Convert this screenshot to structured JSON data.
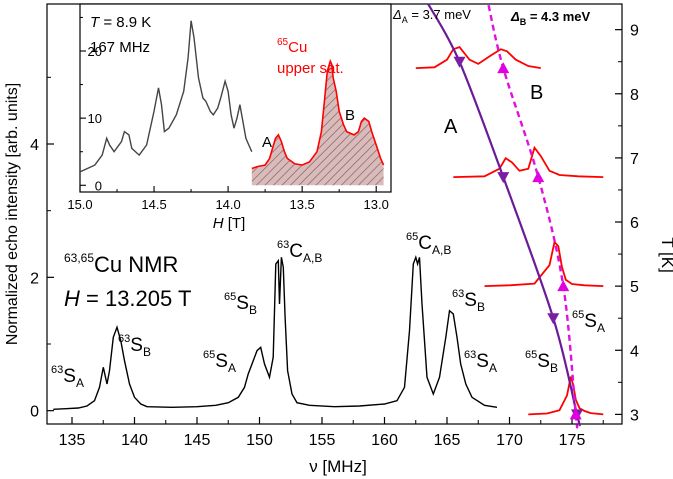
{
  "colors": {
    "main": "#000000",
    "spectrum": "#ff0000",
    "hatch": "#c8a0a0",
    "fit_A": "#6a1b9a",
    "fit_B": "#e010e0",
    "marker_A": "#7b1fa2",
    "marker_B": "#e000e0"
  },
  "chart_data": [
    {
      "id": "main",
      "type": "line",
      "xlabel": "ν [MHz]",
      "ylabel": "Normalized echo intensity [arb. units]",
      "xlim": [
        133,
        179
      ],
      "ylim": [
        -0.2,
        6.1
      ],
      "xticks": [
        "135",
        "140",
        "145",
        "150",
        "155",
        "160",
        "165",
        "170",
        "175"
      ],
      "yticks": [
        "0",
        "2",
        "4"
      ],
      "grid": false,
      "series": [
        {
          "color": "#000000",
          "x": [
            133.5,
            134.5,
            135.5,
            136.2,
            136.8,
            137.2,
            137.5,
            137.8,
            138.0,
            138.3,
            138.6,
            138.9,
            139.2,
            139.6,
            140.0,
            140.5,
            141.0,
            143.0,
            145.0,
            146.5,
            147.5,
            148.3,
            148.8,
            149.1,
            149.4,
            149.8,
            150.1,
            150.4,
            150.8,
            151.1,
            151.3,
            151.5,
            151.6,
            151.75,
            151.9,
            152.05,
            152.25,
            152.6,
            153.0,
            154.0,
            156.0,
            158.0,
            160.0,
            161.0,
            161.6,
            162.0,
            162.3,
            162.5,
            162.65,
            162.8,
            163.0,
            163.4,
            163.9,
            164.4,
            164.9,
            165.2,
            165.5,
            165.8,
            166.1,
            166.5,
            167.0,
            168.0,
            169.0
          ],
          "y": [
            0.02,
            0.03,
            0.04,
            0.07,
            0.15,
            0.35,
            0.65,
            0.4,
            0.6,
            1.1,
            1.25,
            1.05,
            0.75,
            0.4,
            0.2,
            0.1,
            0.06,
            0.05,
            0.06,
            0.08,
            0.12,
            0.2,
            0.35,
            0.55,
            0.7,
            0.9,
            0.95,
            0.7,
            0.5,
            0.8,
            2.2,
            2.25,
            1.6,
            2.3,
            2.15,
            1.4,
            0.6,
            0.25,
            0.12,
            0.08,
            0.06,
            0.07,
            0.1,
            0.15,
            0.35,
            1.2,
            2.2,
            2.3,
            2.2,
            2.3,
            1.6,
            0.5,
            0.25,
            0.5,
            1.1,
            1.5,
            1.45,
            1.1,
            0.7,
            0.4,
            0.2,
            0.08,
            0.05
          ]
        }
      ],
      "annotations": [
        {
          "text": "63,65",
          "role": "sup"
        },
        {
          "text": "Cu NMR",
          "role": "main"
        },
        {
          "text": "H",
          "role": "italic"
        },
        {
          "text": " = 13.205 T",
          "role": "main"
        },
        {
          "text": "63",
          "role": "sup"
        },
        {
          "text": "S",
          "role": "main"
        },
        {
          "text": "A",
          "role": "sub"
        },
        {
          "text": "63",
          "role": "sup"
        },
        {
          "text": "S",
          "role": "main"
        },
        {
          "text": "B",
          "role": "sub"
        },
        {
          "text": "65",
          "role": "sup"
        },
        {
          "text": "S",
          "role": "main"
        },
        {
          "text": "B",
          "role": "sub"
        },
        {
          "text": "65",
          "role": "sup"
        },
        {
          "text": "S",
          "role": "main"
        },
        {
          "text": "A",
          "role": "sub"
        },
        {
          "text": "63",
          "role": "sup"
        },
        {
          "text": "C",
          "role": "main"
        },
        {
          "text": "A,B",
          "role": "sub"
        },
        {
          "text": "65",
          "role": "sup"
        },
        {
          "text": "C",
          "role": "main"
        },
        {
          "text": "A,B",
          "role": "sub"
        },
        {
          "text": "63",
          "role": "sup"
        },
        {
          "text": "S",
          "role": "main"
        },
        {
          "text": "B",
          "role": "sub"
        },
        {
          "text": "63",
          "role": "sup"
        },
        {
          "text": "S",
          "role": "main"
        },
        {
          "text": "A",
          "role": "sub"
        },
        {
          "text": "65",
          "role": "sup"
        },
        {
          "text": "S",
          "role": "main"
        },
        {
          "text": "B",
          "role": "sub"
        },
        {
          "text": "65",
          "role": "sup"
        },
        {
          "text": "S",
          "role": "main"
        },
        {
          "text": "A",
          "role": "sub"
        }
      ]
    },
    {
      "id": "temperature",
      "type": "line",
      "y2label": "T [K]",
      "y2lim": [
        2.85,
        9.4
      ],
      "y2ticks": [
        "3",
        "4",
        "5",
        "6",
        "7",
        "8",
        "9"
      ],
      "spectra": [
        {
          "T": 3.0,
          "x": [
            171.5,
            173.0,
            174.0,
            174.6,
            174.9,
            175.1,
            175.3,
            175.6,
            176.0,
            176.5,
            177.5
          ],
          "y": [
            0.0,
            0.02,
            0.1,
            0.45,
            0.9,
            0.7,
            0.35,
            0.15,
            0.08,
            0.03,
            0.0
          ]
        },
        {
          "T": 5.0,
          "x": [
            168.0,
            170.0,
            172.0,
            173.2,
            173.6,
            173.9,
            174.2,
            174.5,
            175.0,
            176.0,
            177.5
          ],
          "y": [
            0.0,
            0.02,
            0.06,
            0.5,
            1.05,
            0.95,
            0.45,
            0.15,
            0.05,
            0.02,
            0.0
          ]
        },
        {
          "T": 6.7,
          "x": [
            165.5,
            168.0,
            169.2,
            169.7,
            170.2,
            170.8,
            171.5,
            172.0,
            172.5,
            173.2,
            174.0,
            175.5,
            177.5
          ],
          "y": [
            0.0,
            0.02,
            0.2,
            0.45,
            0.35,
            0.15,
            0.2,
            0.7,
            0.5,
            0.15,
            0.05,
            0.02,
            0.0
          ]
        },
        {
          "T": 8.4,
          "x": [
            162.5,
            164.0,
            165.0,
            165.5,
            166.0,
            166.8,
            167.5,
            168.5,
            169.3,
            169.8,
            170.5,
            171.5,
            172.5
          ],
          "y": [
            0.0,
            0.02,
            0.2,
            0.45,
            0.5,
            0.2,
            0.1,
            0.3,
            0.45,
            0.4,
            0.2,
            0.05,
            0.0
          ]
        }
      ],
      "fit_A": {
        "delta_label": "Δ",
        "delta_sub": "A",
        "delta_value": " = 3.7 meV",
        "series_label": "A",
        "T": [
          3.0,
          4.5,
          6.7,
          8.5
        ],
        "x": [
          175.4,
          173.5,
          169.5,
          166.0
        ]
      },
      "fit_B": {
        "delta_label": "Δ",
        "delta_sub": "B",
        "delta_value": " = 4.3 meV",
        "series_label": "B",
        "T": [
          3.0,
          5.0,
          6.7,
          8.4
        ],
        "x": [
          175.3,
          174.3,
          172.3,
          169.5
        ]
      }
    },
    {
      "id": "inset",
      "type": "area",
      "xlabel_italic": "H",
      "xlabel_rest": " [T]",
      "xlim": [
        15.0,
        12.9
      ],
      "ylim": [
        -1,
        27
      ],
      "xticks": [
        "15.0",
        "14.5",
        "14.0",
        "13.5",
        "13.0"
      ],
      "yticks": [
        "0",
        "10",
        "20"
      ],
      "legend": {
        "temp_italic": "T",
        "temp_rest": " = 8.9 K",
        "freq": "167 MHz",
        "isotope_sup": "65",
        "isotope": "Cu",
        "isotope_rest": "upper sat."
      },
      "peak_labels": [
        "A",
        "B"
      ],
      "black": {
        "x": [
          15.0,
          14.95,
          14.9,
          14.85,
          14.82,
          14.8,
          14.77,
          14.72,
          14.7,
          14.67,
          14.65,
          14.6,
          14.55,
          14.5,
          14.47,
          14.45,
          14.43,
          14.4,
          14.35,
          14.3,
          14.27,
          14.25,
          14.23,
          14.2,
          14.17,
          14.15,
          14.12,
          14.1,
          14.07,
          14.05,
          14.02,
          14.0,
          13.98,
          13.96,
          13.94,
          13.92,
          13.9,
          13.88,
          13.86,
          13.84
        ],
        "y": [
          2.0,
          2.5,
          3.0,
          4.5,
          7.0,
          6.0,
          5.0,
          6.5,
          8.0,
          7.5,
          5.5,
          4.5,
          6.0,
          11.0,
          14.5,
          12.0,
          8.0,
          8.5,
          10.5,
          14.0,
          19.0,
          24.5,
          22.0,
          16.0,
          13.0,
          12.5,
          11.0,
          10.5,
          11.5,
          13.0,
          15.5,
          14.0,
          10.5,
          8.5,
          10.0,
          12.0,
          9.5,
          7.0,
          6.0,
          5.0
        ]
      },
      "red": {
        "x": [
          13.84,
          13.8,
          13.75,
          13.72,
          13.7,
          13.68,
          13.66,
          13.64,
          13.62,
          13.6,
          13.55,
          13.5,
          13.45,
          13.4,
          13.37,
          13.35,
          13.33,
          13.31,
          13.3,
          13.29,
          13.27,
          13.25,
          13.22,
          13.2,
          13.15,
          13.12,
          13.1,
          13.08,
          13.05,
          13.03,
          13.0,
          12.97,
          12.95
        ],
        "y": [
          2.5,
          2.8,
          3.0,
          4.0,
          5.5,
          7.0,
          7.5,
          6.5,
          5.0,
          4.0,
          3.2,
          3.0,
          3.5,
          5.0,
          8.0,
          12.5,
          17.0,
          18.5,
          18.0,
          16.0,
          14.0,
          11.0,
          9.0,
          8.0,
          7.5,
          8.0,
          9.5,
          10.0,
          9.5,
          8.0,
          6.0,
          4.0,
          3.0
        ]
      }
    }
  ]
}
